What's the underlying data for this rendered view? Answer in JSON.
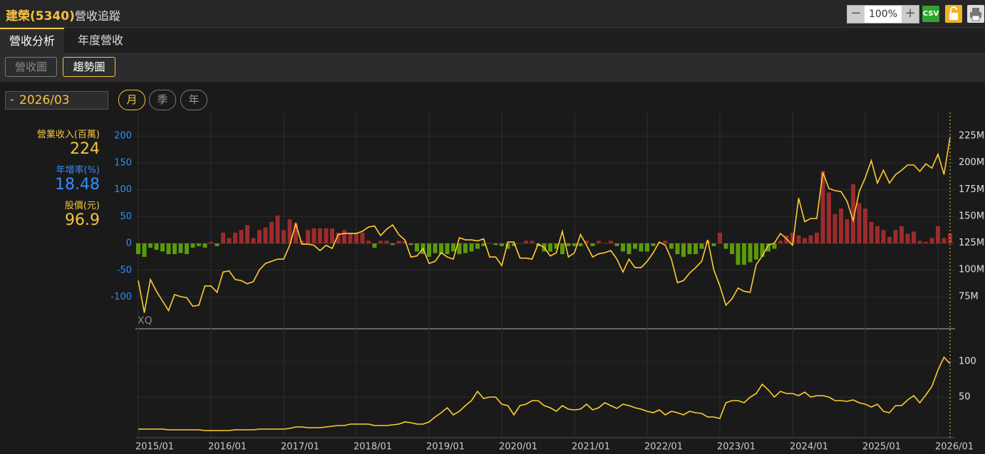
{
  "header": {
    "title": "建榮(5340)",
    "subtitle": "營收追蹤",
    "zoom": "100%",
    "csv": "CSV"
  },
  "tabs": [
    "營收分析",
    "年度營收"
  ],
  "views": [
    "營收圖",
    "趨勢圖"
  ],
  "date": "2026/03",
  "periods": [
    "月",
    "季",
    "年"
  ],
  "watermark": "XQ",
  "chart_data": [
    {
      "type": "combo",
      "x": [
        "2015/01",
        "2015/02",
        "2015/03",
        "2015/04",
        "2015/05",
        "2015/06",
        "2015/07",
        "2015/08",
        "2015/09",
        "2015/10",
        "2015/11",
        "2015/12",
        "2016/01",
        "2016/02",
        "2016/03",
        "2016/04",
        "2016/05",
        "2016/06",
        "2016/07",
        "2016/08",
        "2016/09",
        "2016/10",
        "2016/11",
        "2016/12",
        "2017/01",
        "2017/02",
        "2017/03",
        "2017/04",
        "2017/05",
        "2017/06",
        "2017/07",
        "2017/08",
        "2017/09",
        "2017/10",
        "2017/11",
        "2017/12",
        "2018/01",
        "2018/02",
        "2018/03",
        "2018/04",
        "2018/05",
        "2018/06",
        "2018/07",
        "2018/08",
        "2018/09",
        "2018/10",
        "2018/11",
        "2018/12",
        "2019/01",
        "2019/02",
        "2019/03",
        "2019/04",
        "2019/05",
        "2019/06",
        "2019/07",
        "2019/08",
        "2019/09",
        "2019/10",
        "2019/11",
        "2019/12",
        "2020/01",
        "2020/02",
        "2020/03",
        "2020/04",
        "2020/05",
        "2020/06",
        "2020/07",
        "2020/08",
        "2020/09",
        "2020/10",
        "2020/11",
        "2020/12",
        "2021/01",
        "2021/02",
        "2021/03",
        "2021/04",
        "2021/05",
        "2021/06",
        "2021/07",
        "2021/08",
        "2021/09",
        "2021/10",
        "2021/11",
        "2021/12",
        "2022/01",
        "2022/02",
        "2022/03",
        "2022/04",
        "2022/05",
        "2022/06",
        "2022/07",
        "2022/08",
        "2022/09",
        "2022/10",
        "2022/11",
        "2022/12",
        "2023/01",
        "2023/02",
        "2023/03",
        "2023/04",
        "2023/05",
        "2023/06",
        "2023/07",
        "2023/08",
        "2023/09",
        "2023/10",
        "2023/11",
        "2023/12",
        "2024/01",
        "2024/02",
        "2024/03",
        "2024/04",
        "2024/05",
        "2024/06",
        "2024/07",
        "2024/08",
        "2024/09",
        "2024/10",
        "2024/11",
        "2024/12",
        "2025/01",
        "2025/02",
        "2025/03",
        "2025/04",
        "2025/05",
        "2025/06",
        "2025/07",
        "2025/08",
        "2025/09",
        "2025/10",
        "2025/11",
        "2025/12",
        "2026/01",
        "2026/02",
        "2026/03"
      ],
      "series": [
        {
          "name": "年增率(%)",
          "type": "bar",
          "axis": "y",
          "color_up": "#9b2c2c",
          "color_down": "#5b9a0c",
          "text_color": "#2f8fff",
          "values": [
            -20,
            -25,
            -8,
            -12,
            -15,
            -20,
            -20,
            -18,
            -20,
            -8,
            -5,
            -8,
            3,
            -5,
            20,
            10,
            20,
            25,
            34,
            10,
            25,
            30,
            40,
            52,
            25,
            45,
            38,
            5,
            25,
            28,
            28,
            28,
            28,
            20,
            25,
            20,
            20,
            20,
            5,
            -8,
            5,
            5,
            -3,
            5,
            5,
            -3,
            -15,
            -20,
            -25,
            -18,
            -20,
            -20,
            -15,
            -20,
            -18,
            -15,
            -10,
            -5,
            1,
            -3,
            -5,
            -10,
            -5,
            1,
            5,
            5,
            -5,
            -15,
            -15,
            -10,
            -20,
            -5,
            -5,
            -5,
            5,
            -5,
            5,
            1,
            5,
            -5,
            -15,
            -20,
            -10,
            -15,
            -15,
            -5,
            1,
            5,
            -10,
            -20,
            -25,
            -20,
            -20,
            -10,
            5,
            -5,
            20,
            -10,
            -20,
            -40,
            -40,
            -35,
            -30,
            -25,
            -15,
            -10,
            5,
            15,
            20,
            15,
            10,
            15,
            20,
            135,
            95,
            55,
            65,
            45,
            110,
            75,
            65,
            40,
            32,
            25,
            12,
            25,
            32,
            18,
            22,
            5,
            3,
            10,
            32,
            10,
            18.48
          ]
        },
        {
          "name": "營業收入(百萬)",
          "type": "line",
          "axis": "y2",
          "color": "#ffcc33",
          "values": [
            90,
            60,
            91,
            80,
            71,
            62,
            77,
            75,
            74,
            66,
            67,
            85,
            85,
            79,
            98,
            99,
            91,
            90,
            87,
            89,
            100,
            106,
            108,
            110,
            110,
            123,
            143,
            124,
            124,
            123,
            118,
            123,
            120,
            133,
            134,
            134,
            134,
            136,
            140,
            141,
            132,
            138,
            142,
            133,
            128,
            112,
            113,
            120,
            106,
            108,
            116,
            112,
            110,
            130,
            128,
            128,
            127,
            129,
            112,
            112,
            104,
            126,
            126,
            111,
            111,
            110,
            124,
            121,
            113,
            116,
            136,
            112,
            116,
            133,
            123,
            112,
            115,
            116,
            118,
            110,
            98,
            110,
            102,
            102,
            108,
            116,
            126,
            123,
            110,
            88,
            90,
            97,
            102,
            108,
            128,
            100,
            85,
            67,
            73,
            83,
            80,
            79,
            105,
            113,
            123,
            125,
            134,
            129,
            123,
            167,
            145,
            148,
            148,
            191,
            176,
            174,
            173,
            164,
            146,
            173,
            186,
            202,
            181,
            193,
            181,
            189,
            193,
            198,
            198,
            192,
            199,
            195,
            208,
            189,
            224
          ]
        }
      ],
      "ylim": [
        -159,
        244
      ],
      "yticks": [
        -100,
        -50,
        0,
        50,
        100,
        150,
        200
      ],
      "y2lim": [
        45,
        247
      ],
      "y2ticks": [
        {
          "value": 75,
          "label": "75M"
        },
        {
          "value": 100,
          "label": "100M"
        },
        {
          "value": 125,
          "label": "125M"
        },
        {
          "value": 150,
          "label": "150M"
        },
        {
          "value": 175,
          "label": "175M"
        },
        {
          "value": 200,
          "label": "200M"
        },
        {
          "value": 225,
          "label": "225M"
        }
      ],
      "grid": true
    },
    {
      "type": "line",
      "x": [
        "2015/01",
        "2015/02",
        "2015/03",
        "2015/04",
        "2015/05",
        "2015/06",
        "2015/07",
        "2015/08",
        "2015/09",
        "2015/10",
        "2015/11",
        "2015/12",
        "2016/01",
        "2016/02",
        "2016/03",
        "2016/04",
        "2016/05",
        "2016/06",
        "2016/07",
        "2016/08",
        "2016/09",
        "2016/10",
        "2016/11",
        "2016/12",
        "2017/01",
        "2017/02",
        "2017/03",
        "2017/04",
        "2017/05",
        "2017/06",
        "2017/07",
        "2017/08",
        "2017/09",
        "2017/10",
        "2017/11",
        "2017/12",
        "2018/01",
        "2018/02",
        "2018/03",
        "2018/04",
        "2018/05",
        "2018/06",
        "2018/07",
        "2018/08",
        "2018/09",
        "2018/10",
        "2018/11",
        "2018/12",
        "2019/01",
        "2019/02",
        "2019/03",
        "2019/04",
        "2019/05",
        "2019/06",
        "2019/07",
        "2019/08",
        "2019/09",
        "2019/10",
        "2019/11",
        "2019/12",
        "2020/01",
        "2020/02",
        "2020/03",
        "2020/04",
        "2020/05",
        "2020/06",
        "2020/07",
        "2020/08",
        "2020/09",
        "2020/10",
        "2020/11",
        "2020/12",
        "2021/01",
        "2021/02",
        "2021/03",
        "2021/04",
        "2021/05",
        "2021/06",
        "2021/07",
        "2021/08",
        "2021/09",
        "2021/10",
        "2021/11",
        "2021/12",
        "2022/01",
        "2022/02",
        "2022/03",
        "2022/04",
        "2022/05",
        "2022/06",
        "2022/07",
        "2022/08",
        "2022/09",
        "2022/10",
        "2022/11",
        "2022/12",
        "2023/01",
        "2023/02",
        "2023/03",
        "2023/04",
        "2023/05",
        "2023/06",
        "2023/07",
        "2023/08",
        "2023/09",
        "2023/10",
        "2023/11",
        "2023/12",
        "2024/01",
        "2024/02",
        "2024/03",
        "2024/04",
        "2024/05",
        "2024/06",
        "2024/07",
        "2024/08",
        "2024/09",
        "2024/10",
        "2024/11",
        "2024/12",
        "2025/01",
        "2025/02",
        "2025/03",
        "2025/04",
        "2025/05",
        "2025/06",
        "2025/07",
        "2025/08",
        "2025/09",
        "2025/10",
        "2025/11",
        "2025/12",
        "2026/01",
        "2026/02",
        "2026/03"
      ],
      "series": [
        {
          "name": "股價(元)",
          "color": "#ffcc33",
          "values": [
            5,
            5,
            5,
            5,
            5,
            4,
            4,
            4,
            4,
            4,
            4,
            3,
            3,
            3,
            3,
            3,
            4,
            4,
            4,
            4,
            5,
            5,
            5,
            5,
            5,
            6,
            8,
            8,
            7,
            7,
            7,
            8,
            9,
            10,
            10,
            12,
            12,
            12,
            12,
            10,
            10,
            10,
            11,
            12,
            15,
            14,
            12,
            12,
            15,
            22,
            28,
            35,
            25,
            30,
            38,
            45,
            58,
            48,
            50,
            50,
            40,
            38,
            25,
            38,
            40,
            45,
            45,
            38,
            35,
            30,
            38,
            33,
            32,
            33,
            40,
            32,
            35,
            42,
            38,
            34,
            40,
            38,
            35,
            33,
            30,
            28,
            32,
            25,
            30,
            28,
            25,
            30,
            28,
            27,
            22,
            22,
            20,
            42,
            45,
            45,
            42,
            50,
            55,
            68,
            60,
            50,
            58,
            55,
            55,
            52,
            57,
            50,
            52,
            52,
            50,
            45,
            45,
            44,
            46,
            42,
            40,
            36,
            40,
            30,
            28,
            38,
            38,
            46,
            52,
            42,
            53,
            65,
            88,
            106,
            96.9
          ]
        }
      ],
      "ylim": [
        -7,
        146
      ],
      "yticks": [
        50,
        100
      ],
      "xticks": [
        "2015/01",
        "2016/01",
        "2017/01",
        "2018/01",
        "2019/01",
        "2020/01",
        "2021/01",
        "2022/01",
        "2023/01",
        "2024/01",
        "2025/01",
        "2026/01"
      ],
      "grid": true
    }
  ]
}
